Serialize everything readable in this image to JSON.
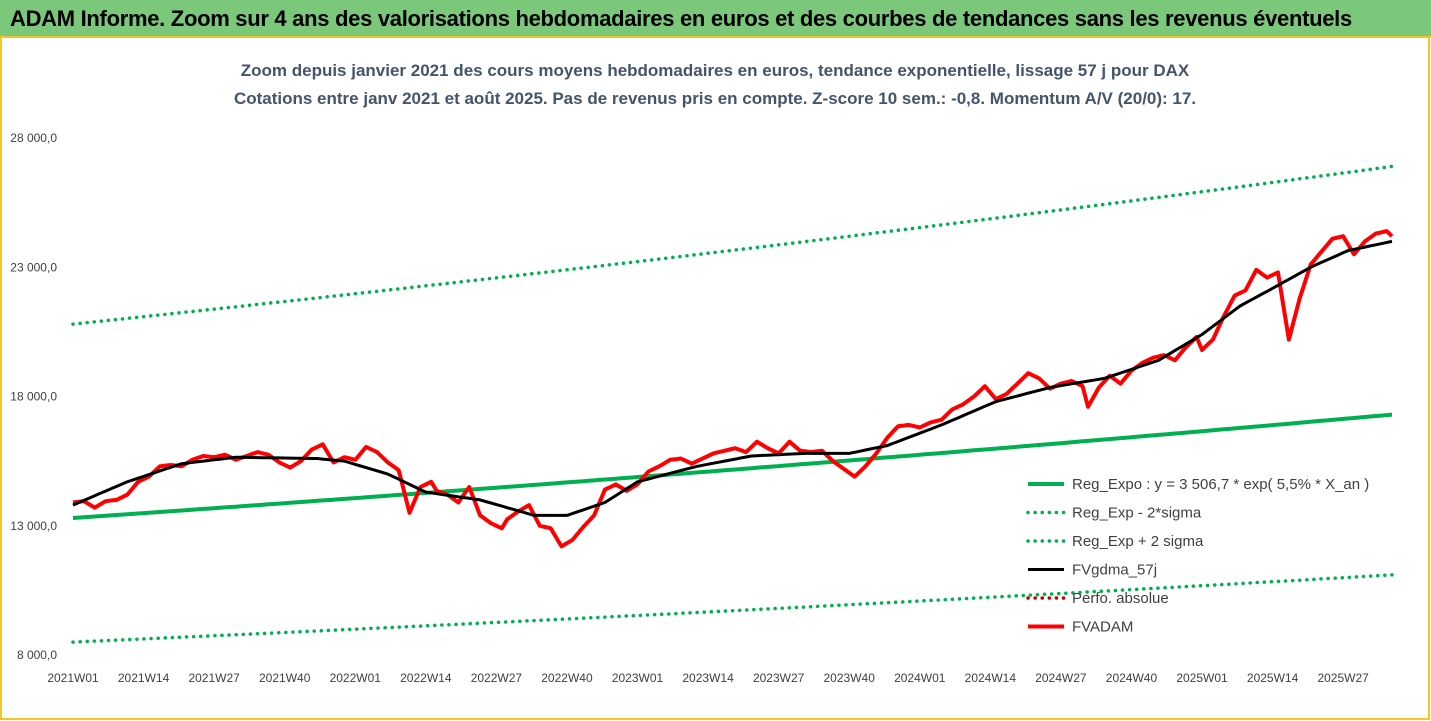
{
  "banner": {
    "title": "ADAM Informe. Zoom sur 4 ans des valorisations hebdomadaires en euros et des courbes de tendances sans les revenus éventuels"
  },
  "colors": {
    "banner_bg": "#7bc87b",
    "frame_border": "#f3c623",
    "reg_expo": "#00b050",
    "fvgdma": "#000000",
    "fvadam": "#ff0000",
    "perfo": "#c00000"
  },
  "chart_data": {
    "type": "line",
    "title": "Zoom depuis janvier 2021 des cours moyens hebdomadaires en euros, tendance exponentielle, lissage 57 j pour DAX",
    "subtitle": "Cotations entre janv 2021 et août 2025. Pas de revenus pris en compte. Z-score 10 sem.: -0,8. Momentum A/V (20/0): 17.",
    "ylim": [
      8000,
      30000
    ],
    "yticks": [
      8000,
      13000,
      18000,
      23000,
      28000
    ],
    "ytick_labels": [
      "8 000,0",
      "13 000,0",
      "18 000,0",
      "23 000,0",
      "28 000,0"
    ],
    "x_tick_labels": [
      "2021W01",
      "2021W14",
      "2021W27",
      "2021W40",
      "2022W01",
      "2022W14",
      "2022W27",
      "2022W40",
      "2023W01",
      "2023W14",
      "2023W27",
      "2023W40",
      "2024W01",
      "2024W14",
      "2024W27",
      "2024W40",
      "2025W01",
      "2025W14",
      "2025W27"
    ],
    "x_tick_index": [
      0,
      13,
      26,
      39,
      52,
      65,
      78,
      91,
      104,
      117,
      130,
      143,
      156,
      169,
      182,
      195,
      208,
      221,
      234
    ],
    "n_weeks": 244,
    "grid": false,
    "legend_position": "bottom-right",
    "series": [
      {
        "key": "reg_expo",
        "name": "Reg_Expo : y = 3 506,7 * exp( 5,5% *  X_an )",
        "style": "solid-thick",
        "color": "#00b050",
        "start": 13300,
        "end": 17300
      },
      {
        "key": "minus2",
        "name": "Reg_Exp - 2*sigma",
        "style": "dotted",
        "color": "#00b050",
        "start": 8500,
        "end": 11100
      },
      {
        "key": "plus2",
        "name": "Reg_Exp + 2 sigma",
        "style": "dotted",
        "color": "#00b050",
        "start": 20800,
        "end": 26900
      },
      {
        "key": "fvgdma",
        "name": "FVgdma_57j",
        "style": "solid",
        "color": "#000000",
        "knots": [
          [
            0,
            13800
          ],
          [
            10,
            14700
          ],
          [
            20,
            15400
          ],
          [
            30,
            15650
          ],
          [
            45,
            15600
          ],
          [
            50,
            15500
          ],
          [
            58,
            15000
          ],
          [
            65,
            14300
          ],
          [
            75,
            14000
          ],
          [
            85,
            13400
          ],
          [
            91,
            13400
          ],
          [
            98,
            13900
          ],
          [
            104,
            14700
          ],
          [
            115,
            15300
          ],
          [
            125,
            15700
          ],
          [
            135,
            15800
          ],
          [
            143,
            15800
          ],
          [
            150,
            16100
          ],
          [
            160,
            16900
          ],
          [
            170,
            17800
          ],
          [
            180,
            18350
          ],
          [
            190,
            18700
          ],
          [
            200,
            19400
          ],
          [
            208,
            20400
          ],
          [
            215,
            21500
          ],
          [
            222,
            22300
          ],
          [
            228,
            23000
          ],
          [
            235,
            23650
          ],
          [
            243,
            24000
          ]
        ]
      },
      {
        "key": "perfo",
        "name": "Perfo. absolue",
        "style": "dotted",
        "color": "#c00000"
      },
      {
        "key": "fvadam",
        "name": "FVADAM",
        "style": "solid-thick",
        "color": "#ff0000",
        "knots": [
          [
            0,
            13900
          ],
          [
            2,
            13950
          ],
          [
            4,
            13700
          ],
          [
            6,
            13950
          ],
          [
            8,
            14000
          ],
          [
            10,
            14200
          ],
          [
            12,
            14700
          ],
          [
            14,
            14900
          ],
          [
            16,
            15300
          ],
          [
            18,
            15350
          ],
          [
            20,
            15300
          ],
          [
            22,
            15550
          ],
          [
            24,
            15700
          ],
          [
            26,
            15650
          ],
          [
            28,
            15750
          ],
          [
            30,
            15550
          ],
          [
            32,
            15700
          ],
          [
            34,
            15850
          ],
          [
            36,
            15750
          ],
          [
            38,
            15450
          ],
          [
            40,
            15250
          ],
          [
            42,
            15500
          ],
          [
            44,
            15950
          ],
          [
            46,
            16150
          ],
          [
            48,
            15450
          ],
          [
            50,
            15650
          ],
          [
            52,
            15550
          ],
          [
            54,
            16050
          ],
          [
            56,
            15850
          ],
          [
            58,
            15450
          ],
          [
            60,
            15150
          ],
          [
            62,
            13500
          ],
          [
            64,
            14500
          ],
          [
            66,
            14700
          ],
          [
            67,
            14350
          ],
          [
            69,
            14200
          ],
          [
            71,
            13900
          ],
          [
            73,
            14500
          ],
          [
            75,
            13400
          ],
          [
            77,
            13100
          ],
          [
            79,
            12900
          ],
          [
            80,
            13250
          ],
          [
            82,
            13550
          ],
          [
            84,
            13800
          ],
          [
            86,
            13000
          ],
          [
            88,
            12900
          ],
          [
            90,
            12200
          ],
          [
            92,
            12450
          ],
          [
            94,
            12950
          ],
          [
            96,
            13400
          ],
          [
            98,
            14400
          ],
          [
            100,
            14600
          ],
          [
            102,
            14350
          ],
          [
            104,
            14600
          ],
          [
            106,
            15100
          ],
          [
            108,
            15300
          ],
          [
            110,
            15550
          ],
          [
            112,
            15600
          ],
          [
            114,
            15400
          ],
          [
            116,
            15600
          ],
          [
            118,
            15800
          ],
          [
            120,
            15900
          ],
          [
            122,
            16000
          ],
          [
            124,
            15850
          ],
          [
            126,
            16250
          ],
          [
            128,
            16000
          ],
          [
            130,
            15800
          ],
          [
            132,
            16250
          ],
          [
            134,
            15900
          ],
          [
            136,
            15850
          ],
          [
            138,
            15900
          ],
          [
            140,
            15500
          ],
          [
            142,
            15200
          ],
          [
            144,
            14900
          ],
          [
            146,
            15300
          ],
          [
            148,
            15800
          ],
          [
            150,
            16400
          ],
          [
            152,
            16850
          ],
          [
            154,
            16900
          ],
          [
            156,
            16800
          ],
          [
            158,
            17000
          ],
          [
            160,
            17100
          ],
          [
            162,
            17500
          ],
          [
            164,
            17700
          ],
          [
            166,
            18000
          ],
          [
            168,
            18400
          ],
          [
            170,
            17900
          ],
          [
            172,
            18100
          ],
          [
            174,
            18500
          ],
          [
            176,
            18900
          ],
          [
            178,
            18700
          ],
          [
            180,
            18300
          ],
          [
            182,
            18500
          ],
          [
            184,
            18600
          ],
          [
            186,
            18400
          ],
          [
            187,
            17600
          ],
          [
            189,
            18350
          ],
          [
            191,
            18800
          ],
          [
            193,
            18500
          ],
          [
            195,
            19000
          ],
          [
            197,
            19300
          ],
          [
            199,
            19500
          ],
          [
            201,
            19600
          ],
          [
            203,
            19400
          ],
          [
            205,
            19900
          ],
          [
            207,
            20300
          ],
          [
            208,
            19800
          ],
          [
            210,
            20200
          ],
          [
            212,
            21100
          ],
          [
            214,
            21900
          ],
          [
            216,
            22100
          ],
          [
            218,
            22900
          ],
          [
            220,
            22600
          ],
          [
            222,
            22800
          ],
          [
            224,
            20200
          ],
          [
            226,
            21800
          ],
          [
            228,
            23100
          ],
          [
            230,
            23600
          ],
          [
            232,
            24100
          ],
          [
            234,
            24200
          ],
          [
            236,
            23500
          ],
          [
            238,
            24000
          ],
          [
            240,
            24300
          ],
          [
            242,
            24400
          ],
          [
            243,
            24200
          ]
        ]
      }
    ]
  }
}
